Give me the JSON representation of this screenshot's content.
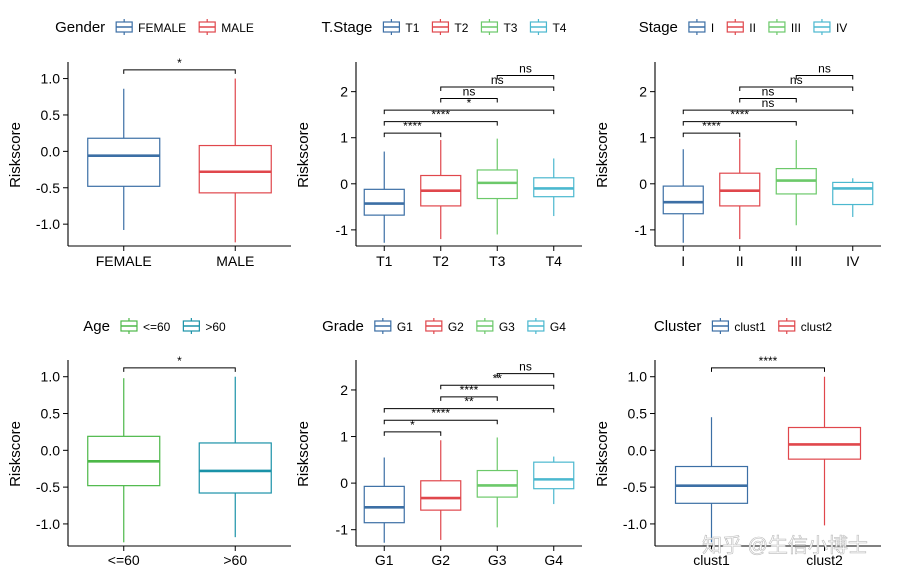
{
  "watermark": "知乎 @生信小博士",
  "chart_data": [
    {
      "type": "boxplot",
      "ylabel": "Riskscore",
      "ylim": [
        -1.3,
        1.2
      ],
      "yticks": [
        -1.0,
        -0.5,
        0.0,
        0.5,
        1.0
      ],
      "ytick_labels": [
        "-1.0",
        "-0.5",
        "0.0",
        "0.5",
        "1.0"
      ],
      "legend": {
        "title": "Gender",
        "position": "top"
      },
      "series": [
        {
          "name": "FEMALE",
          "color": "#3C6FA5",
          "min": -1.08,
          "q1": -0.48,
          "median": -0.06,
          "q3": 0.18,
          "max": 0.86
        },
        {
          "name": "MALE",
          "color": "#E0474C",
          "min": -1.25,
          "q1": -0.57,
          "median": -0.28,
          "q3": 0.08,
          "max": 1.0
        }
      ],
      "comparisons": [
        {
          "from": 0,
          "to": 1,
          "label": "*",
          "y": 1.12
        }
      ]
    },
    {
      "type": "boxplot",
      "ylabel": "Riskscore",
      "ylim": [
        -1.35,
        2.6
      ],
      "yticks": [
        -1,
        0,
        1,
        2
      ],
      "ytick_labels": [
        "-1",
        "0",
        "1",
        "2"
      ],
      "legend": {
        "title": "T.Stage",
        "position": "top"
      },
      "series": [
        {
          "name": "T1",
          "color": "#3C6FA5",
          "min": -1.28,
          "q1": -0.68,
          "median": -0.43,
          "q3": -0.12,
          "max": 0.7
        },
        {
          "name": "T2",
          "color": "#E0474C",
          "min": -1.2,
          "q1": -0.48,
          "median": -0.15,
          "q3": 0.18,
          "max": 0.95
        },
        {
          "name": "T3",
          "color": "#6CC96A",
          "min": -1.1,
          "q1": -0.32,
          "median": 0.02,
          "q3": 0.3,
          "max": 0.98
        },
        {
          "name": "T4",
          "color": "#4BB8CF",
          "min": -0.7,
          "q1": -0.28,
          "median": -0.1,
          "q3": 0.13,
          "max": 0.55
        }
      ],
      "comparisons": [
        {
          "from": 0,
          "to": 1,
          "label": "****",
          "y": 1.1
        },
        {
          "from": 0,
          "to": 2,
          "label": "****",
          "y": 1.35
        },
        {
          "from": 0,
          "to": 3,
          "label": "*",
          "y": 1.6
        },
        {
          "from": 1,
          "to": 2,
          "label": "ns",
          "y": 1.85
        },
        {
          "from": 1,
          "to": 3,
          "label": "ns",
          "y": 2.1
        },
        {
          "from": 2,
          "to": 3,
          "label": "ns",
          "y": 2.35
        }
      ]
    },
    {
      "type": "boxplot",
      "ylabel": "Riskscore",
      "ylim": [
        -1.35,
        2.6
      ],
      "yticks": [
        -1,
        0,
        1,
        2
      ],
      "ytick_labels": [
        "-1",
        "0",
        "1",
        "2"
      ],
      "legend": {
        "title": "Stage",
        "position": "top"
      },
      "series": [
        {
          "name": "I",
          "color": "#3C6FA5",
          "min": -1.28,
          "q1": -0.65,
          "median": -0.4,
          "q3": -0.05,
          "max": 0.75
        },
        {
          "name": "II",
          "color": "#E0474C",
          "min": -1.2,
          "q1": -0.48,
          "median": -0.15,
          "q3": 0.23,
          "max": 0.98
        },
        {
          "name": "III",
          "color": "#6CC96A",
          "min": -0.9,
          "q1": -0.22,
          "median": 0.07,
          "q3": 0.33,
          "max": 0.95
        },
        {
          "name": "IV",
          "color": "#4BB8CF",
          "min": -0.72,
          "q1": -0.45,
          "median": -0.1,
          "q3": 0.03,
          "max": 0.12
        }
      ],
      "comparisons": [
        {
          "from": 0,
          "to": 1,
          "label": "****",
          "y": 1.1
        },
        {
          "from": 0,
          "to": 2,
          "label": "****",
          "y": 1.35
        },
        {
          "from": 0,
          "to": 3,
          "label": "ns",
          "y": 1.6
        },
        {
          "from": 1,
          "to": 2,
          "label": "ns",
          "y": 1.85
        },
        {
          "from": 1,
          "to": 3,
          "label": "ns",
          "y": 2.1
        },
        {
          "from": 2,
          "to": 3,
          "label": "ns",
          "y": 2.35
        }
      ]
    },
    {
      "type": "boxplot",
      "ylabel": "Riskscore",
      "ylim": [
        -1.3,
        1.2
      ],
      "yticks": [
        -1.0,
        -0.5,
        0.0,
        0.5,
        1.0
      ],
      "ytick_labels": [
        "-1.0",
        "-0.5",
        "0.0",
        "0.5",
        "1.0"
      ],
      "legend": {
        "title": "Age",
        "position": "top"
      },
      "series": [
        {
          "name": "<=60",
          "color": "#4CB848",
          "min": -1.25,
          "q1": -0.48,
          "median": -0.15,
          "q3": 0.19,
          "max": 0.98
        },
        {
          "name": ">60",
          "color": "#1A92A8",
          "min": -1.18,
          "q1": -0.58,
          "median": -0.28,
          "q3": 0.1,
          "max": 1.0
        }
      ],
      "comparisons": [
        {
          "from": 0,
          "to": 1,
          "label": "*",
          "y": 1.12
        }
      ]
    },
    {
      "type": "boxplot",
      "ylabel": "Riskscore",
      "ylim": [
        -1.35,
        2.6
      ],
      "yticks": [
        -1,
        0,
        1,
        2
      ],
      "ytick_labels": [
        "-1",
        "0",
        "1",
        "2"
      ],
      "legend": {
        "title": "Grade",
        "position": "top"
      },
      "series": [
        {
          "name": "G1",
          "color": "#3C6FA5",
          "min": -1.28,
          "q1": -0.85,
          "median": -0.52,
          "q3": -0.07,
          "max": 0.55
        },
        {
          "name": "G2",
          "color": "#E0474C",
          "min": -1.22,
          "q1": -0.58,
          "median": -0.32,
          "q3": 0.05,
          "max": 0.92
        },
        {
          "name": "G3",
          "color": "#6CC96A",
          "min": -0.95,
          "q1": -0.3,
          "median": -0.05,
          "q3": 0.27,
          "max": 0.98
        },
        {
          "name": "G4",
          "color": "#4BB8CF",
          "min": -0.45,
          "q1": -0.12,
          "median": 0.08,
          "q3": 0.45,
          "max": 0.57
        }
      ],
      "comparisons": [
        {
          "from": 0,
          "to": 1,
          "label": "*",
          "y": 1.1
        },
        {
          "from": 0,
          "to": 2,
          "label": "****",
          "y": 1.35
        },
        {
          "from": 0,
          "to": 3,
          "label": "**",
          "y": 1.6
        },
        {
          "from": 1,
          "to": 2,
          "label": "****",
          "y": 1.85
        },
        {
          "from": 1,
          "to": 3,
          "label": "**",
          "y": 2.1
        },
        {
          "from": 2,
          "to": 3,
          "label": "ns",
          "y": 2.35
        }
      ]
    },
    {
      "type": "boxplot",
      "ylabel": "Riskscore",
      "ylim": [
        -1.3,
        1.2
      ],
      "yticks": [
        -1.0,
        -0.5,
        0.0,
        0.5,
        1.0
      ],
      "ytick_labels": [
        "-1.0",
        "-0.5",
        "0.0",
        "0.5",
        "1.0"
      ],
      "legend": {
        "title": "Cluster",
        "position": "top"
      },
      "series": [
        {
          "name": "clust1",
          "color": "#3C6FA5",
          "min": -1.25,
          "q1": -0.72,
          "median": -0.48,
          "q3": -0.22,
          "max": 0.45
        },
        {
          "name": "clust2",
          "color": "#E0474C",
          "min": -1.02,
          "q1": -0.12,
          "median": 0.08,
          "q3": 0.31,
          "max": 1.0
        }
      ],
      "comparisons": [
        {
          "from": 0,
          "to": 1,
          "label": "****",
          "y": 1.12
        }
      ]
    }
  ]
}
